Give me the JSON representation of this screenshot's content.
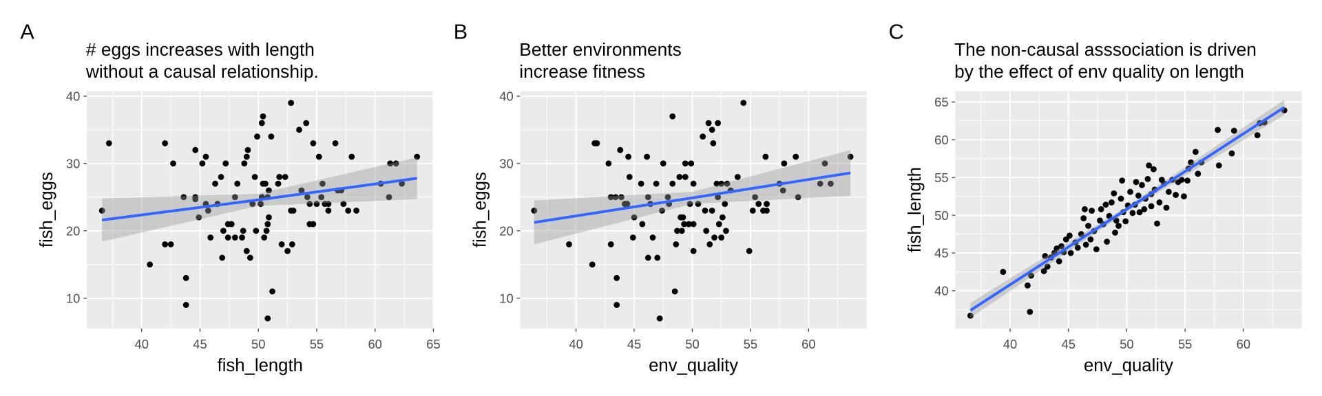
{
  "chart_data": [
    {
      "type": "scatter",
      "panel": "A",
      "title": [
        "# eggs increases with length",
        "without a causal relationship."
      ],
      "xlabel": "fish_length",
      "ylabel": "fish_eggs",
      "xlim": [
        35.3,
        65.0
      ],
      "ylim": [
        5.5,
        40.75
      ],
      "xticks": [
        40,
        45,
        50,
        55,
        60,
        65
      ],
      "yticks": [
        10,
        20,
        30,
        40
      ],
      "color": "#000000",
      "line_color": "#3366ff",
      "band_color": "#999999",
      "x": [
        36.6,
        37.2,
        40.7,
        42.0,
        42.0,
        42.5,
        42.7,
        43.6,
        43.8,
        43.8,
        44.6,
        44.6,
        44.6,
        44.9,
        45.2,
        45.5,
        45.5,
        45.7,
        45.9,
        46.3,
        46.5,
        46.8,
        46.9,
        47.0,
        47.2,
        47.4,
        47.7,
        47.4,
        48.0,
        48.0,
        48.2,
        48.6,
        48.7,
        48.8,
        49.0,
        49.1,
        49.0,
        49.3,
        49.5,
        49.7,
        49.8,
        49.9,
        50.2,
        50.3,
        50.4,
        50.4,
        50.6,
        50.3,
        50.8,
        50.5,
        50.7,
        50.8,
        50.8,
        50.9,
        50.9,
        51.1,
        51.2,
        51.7,
        51.8,
        52.0,
        52.3,
        52.5,
        52.8,
        52.8,
        53.0,
        52.9,
        53.5,
        53.7,
        54.1,
        54.2,
        54.4,
        54.7,
        54.4,
        54.7,
        55.0,
        55.2,
        55.5,
        55.4,
        55.7,
        56.0,
        56.0,
        56.6,
        56.8,
        57.1,
        57.3,
        57.7,
        58.0,
        58.4,
        60.5,
        61.2,
        61.3,
        61.8,
        62.3,
        63.6
      ],
      "y": [
        23,
        33,
        15,
        33,
        18,
        18,
        30,
        25,
        13,
        9,
        32,
        25,
        24.7,
        22,
        30,
        31,
        24,
        23,
        19,
        27,
        24,
        28,
        16,
        20,
        30,
        21,
        21,
        19,
        19,
        25,
        27,
        19,
        20,
        30,
        31,
        32,
        17,
        16,
        24,
        28,
        20,
        34,
        24,
        36,
        37,
        27,
        27,
        25,
        25,
        19,
        20,
        7,
        21,
        22,
        26,
        34,
        11,
        27,
        28,
        18,
        28,
        17,
        39,
        23,
        23,
        18,
        35,
        26,
        36,
        25,
        21,
        21,
        24,
        33,
        24,
        31,
        27,
        25,
        24,
        24,
        23,
        33,
        26,
        26,
        24,
        23,
        31,
        23,
        27,
        25,
        30,
        30,
        27,
        31
      ],
      "fit": {
        "x": [
          36.6,
          50,
          63.6
        ],
        "y": [
          21.6,
          24.6,
          27.8
        ],
        "lower": [
          18.4,
          23.7,
          24.7
        ],
        "upper": [
          24.8,
          25.5,
          30.9
        ]
      }
    },
    {
      "type": "scatter",
      "panel": "B",
      "title": [
        "Better environments",
        "increase fitness"
      ],
      "xlabel": "env_quality",
      "ylabel": "fish_eggs",
      "xlim": [
        35.2,
        65.0
      ],
      "ylim": [
        5.5,
        40.75
      ],
      "xticks": [
        40,
        45,
        50,
        55,
        60
      ],
      "yticks": [
        10,
        20,
        30,
        40
      ],
      "color": "#000000",
      "line_color": "#3366ff",
      "band_color": "#999999",
      "x": [
        36.4,
        39.4,
        41.4,
        41.6,
        41.8,
        42.8,
        43.0,
        43.0,
        43.4,
        43.5,
        43.5,
        43.8,
        43.9,
        44.2,
        44.4,
        44.5,
        44.6,
        44.9,
        45.0,
        45.6,
        45.7,
        46.1,
        46.2,
        46.2,
        46.4,
        46.6,
        46.9,
        47.0,
        47.2,
        47.4,
        47.5,
        47.9,
        48.0,
        48.3,
        48.3,
        48.5,
        48.6,
        48.7,
        48.9,
        49.0,
        49.2,
        49.1,
        49.3,
        49.4,
        49.9,
        49.4,
        49.7,
        50.1,
        49.8,
        50.1,
        50.1,
        50.5,
        50.9,
        51.1,
        51.2,
        51.4,
        51.5,
        51.7,
        51.7,
        51.8,
        51.9,
        52.1,
        52.5,
        52.2,
        52.2,
        52.3,
        52.5,
        52.6,
        52.8,
        52.9,
        53.0,
        53.3,
        53.9,
        54.4,
        54.9,
        55.2,
        55.4,
        55.7,
        56.1,
        56.4,
        56.3,
        56.4,
        57.5,
        57.8,
        57.9,
        58.9,
        59.1,
        61.0,
        61.9,
        61.4,
        63.6
      ],
      "y": [
        23,
        18,
        15,
        33,
        33,
        30,
        18,
        25,
        25,
        13,
        9,
        32,
        25,
        24,
        24,
        31,
        28,
        19,
        22,
        27,
        21,
        31,
        16,
        25,
        24,
        19,
        27,
        16,
        7,
        23,
        30,
        25,
        24,
        27,
        37,
        11,
        18,
        20,
        28,
        22,
        22,
        20,
        21,
        30,
        30,
        28,
        21,
        21,
        24,
        17,
        27,
        24,
        34,
        23,
        20,
        36,
        18,
        23,
        35,
        33,
        19,
        27,
        27,
        36,
        25,
        21,
        19,
        22,
        24,
        20,
        27,
        26,
        28,
        39,
        17,
        23,
        25,
        24,
        23,
        23,
        31,
        24,
        27,
        26,
        30,
        31,
        25,
        27,
        27,
        30,
        31
      ],
      "fit": {
        "x": [
          36.4,
          50,
          63.6
        ],
        "y": [
          21.25,
          24.9,
          28.6
        ],
        "lower": [
          18.0,
          24.0,
          25.2
        ],
        "upper": [
          24.5,
          25.8,
          32.0
        ]
      }
    },
    {
      "type": "scatter",
      "panel": "C",
      "title": [
        "The non-causal asssociation is driven",
        "by the effect of env quality on length"
      ],
      "xlabel": "env_quality",
      "ylabel": "fish_length",
      "xlim": [
        35.3,
        65.0
      ],
      "ylim": [
        35.0,
        66.45
      ],
      "xticks": [
        40,
        45,
        50,
        55,
        60
      ],
      "yticks": [
        40,
        45,
        50,
        55,
        60,
        65
      ],
      "color": "#000000",
      "line_color": "#3366ff",
      "band_color": "#999999",
      "x": [
        36.6,
        39.4,
        41.5,
        41.7,
        41.8,
        42.9,
        43.0,
        43.2,
        43.5,
        43.8,
        44.0,
        44.2,
        44.4,
        44.6,
        44.8,
        45.1,
        45.2,
        45.6,
        45.8,
        46.1,
        46.3,
        46.4,
        46.5,
        46.7,
        46.9,
        47.0,
        47.2,
        47.4,
        47.7,
        47.8,
        48.0,
        48.2,
        48.3,
        48.5,
        48.7,
        48.9,
        49.0,
        49.1,
        49.3,
        49.5,
        49.6,
        49.7,
        49.9,
        50.1,
        50.3,
        50.5,
        50.7,
        50.8,
        51.0,
        51.1,
        51.3,
        51.5,
        51.6,
        51.8,
        51.9,
        52.1,
        52.1,
        52.3,
        52.4,
        52.6,
        52.8,
        53.0,
        53.2,
        53.4,
        53.6,
        53.9,
        54.2,
        54.4,
        54.7,
        54.9,
        55.2,
        55.3,
        55.5,
        55.9,
        56.1,
        56.4,
        57.8,
        57.9,
        59.0,
        59.2,
        61.2,
        61.4,
        61.8,
        63.5
      ],
      "y": [
        36.7,
        42.5,
        40.7,
        37.2,
        42.0,
        42.6,
        44.6,
        43.2,
        44.4,
        45.0,
        45.6,
        43.9,
        45.9,
        45.1,
        46.8,
        47.3,
        45.0,
        46.4,
        45.7,
        47.5,
        49.6,
        50.8,
        46.1,
        48.6,
        46.8,
        50.6,
        47.9,
        45.5,
        49.3,
        50.8,
        48.8,
        51.4,
        46.5,
        49.9,
        51.7,
        52.9,
        47.7,
        49.3,
        48.6,
        52.2,
        54.6,
        50.4,
        49.2,
        51.3,
        53.1,
        50.3,
        51.4,
        54.4,
        52.6,
        50.4,
        54.0,
        50.8,
        52.2,
        54.8,
        56.6,
        51.2,
        52.8,
        56.1,
        53.4,
        48.9,
        51.7,
        54.7,
        54.2,
        51.0,
        53.1,
        54.7,
        52.7,
        54.4,
        54.7,
        52.5,
        54.6,
        56.2,
        57.0,
        58.4,
        55.5,
        57.0,
        61.3,
        56.6,
        58.2,
        61.2,
        60.6,
        62.2,
        62.3,
        63.9
      ],
      "fit": {
        "x": [
          36.6,
          50,
          63.5
        ],
        "y": [
          37.4,
          50.8,
          64.3
        ],
        "lower": [
          36.4,
          50.45,
          63.3
        ],
        "upper": [
          38.4,
          51.15,
          65.3
        ]
      }
    }
  ]
}
